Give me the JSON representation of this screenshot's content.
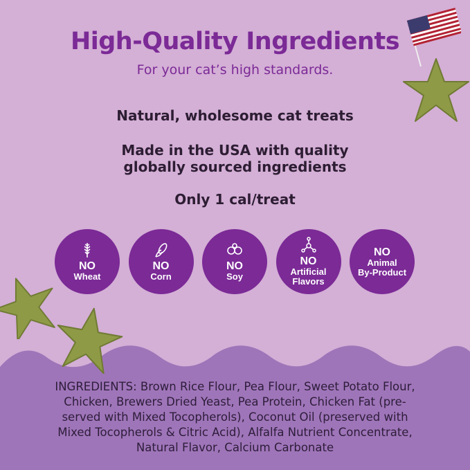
{
  "header": {
    "title": "High-Quality Ingredients",
    "subtitle": "For your cat’s high standards."
  },
  "features": [
    "Natural, wholesome cat treats",
    "Made in the USA with quality",
    "globally sourced ingredients",
    "Only 1 cal/treat"
  ],
  "badges": [
    {
      "icon": "wheat-icon",
      "no": "NO",
      "label": "Wheat"
    },
    {
      "icon": "corn-icon",
      "no": "NO",
      "label": "Corn"
    },
    {
      "icon": "soy-icon",
      "no": "NO",
      "label": "Soy"
    },
    {
      "icon": "molecule-icon",
      "no": "NO",
      "label": "Artificial",
      "label2": "Flavors"
    },
    {
      "no": "NO",
      "label": "Animal",
      "label2": "By-Product"
    }
  ],
  "ingredients": {
    "lines": [
      "INGREDIENTS: Brown Rice Flour, Pea Flour, Sweet Potato Flour,",
      "Chicken, Brewers Dried Yeast, Pea Protein, Chicken Fat (pre-",
      "served with Mixed Tocopherols), Coconut Oil (preserved with",
      "Mixed Tocopherols & Citric Acid), Alfalfa Nutrient Concentrate,",
      "Natural Flavor, Calcium Carbonate"
    ]
  },
  "colors": {
    "background": "#d4afd6",
    "lower_band": "#9f75b9",
    "brand_purple": "#7b2a96",
    "treat_green": "#8f9a47"
  }
}
